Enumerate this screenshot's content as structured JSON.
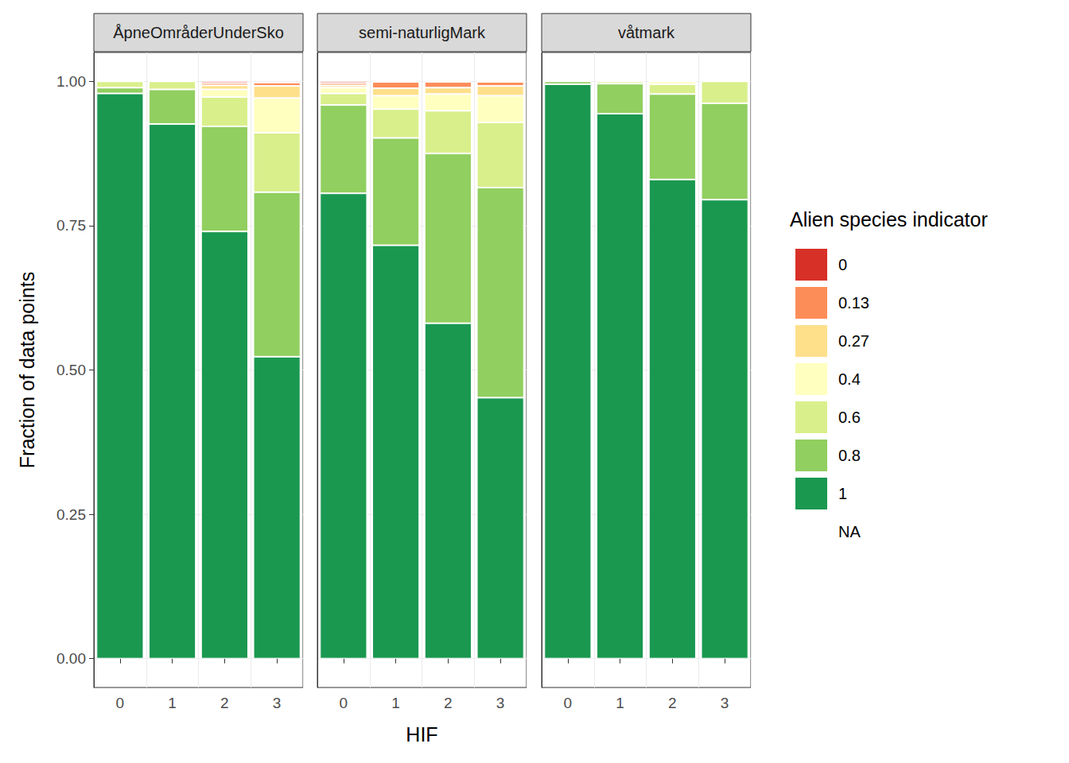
{
  "chart_data": {
    "type": "bar",
    "stacked": true,
    "grid": true,
    "x_label": "HIF",
    "y_label": "Fraction of data points",
    "legend_title": "Alien species indicator",
    "categories": [
      "0",
      "1",
      "2",
      "3"
    ],
    "ylim": [
      -0.05,
      1.05
    ],
    "yticks": [
      {
        "value": 0,
        "label": "0.00"
      },
      {
        "value": 0.25,
        "label": "0.25"
      },
      {
        "value": 0.5,
        "label": "0.50"
      },
      {
        "value": 0.75,
        "label": "0.75"
      },
      {
        "value": 1,
        "label": "1.00"
      }
    ],
    "facets": [
      {
        "title": "ÅpneOmråderUnderSko",
        "series": [
          {
            "name": "0",
            "color": "#d73027",
            "values": [
              0,
              0,
              0.003,
              0.002
            ]
          },
          {
            "name": "0.13",
            "color": "#fc8d59",
            "values": [
              0,
              0,
              0.004,
              0.006
            ]
          },
          {
            "name": "0.27",
            "color": "#fee08b",
            "values": [
              0,
              0,
              0.007,
              0.021
            ]
          },
          {
            "name": "0.4",
            "color": "#ffffbf",
            "values": [
              0,
              0,
              0.013,
              0.06
            ]
          },
          {
            "name": "0.6",
            "color": "#d9ef8b",
            "values": [
              0.011,
              0.014,
              0.051,
              0.103
            ]
          },
          {
            "name": "0.8",
            "color": "#91cf60",
            "values": [
              0.01,
              0.06,
              0.182,
              0.285
            ]
          },
          {
            "name": "1",
            "color": "#1a9850",
            "values": [
              0.979,
              0.926,
              0.74,
              0.523
            ]
          },
          {
            "name": "NA",
            "values": [
              null,
              null,
              null,
              null
            ]
          }
        ]
      },
      {
        "title": "semi-naturligMark",
        "series": [
          {
            "name": "0",
            "color": "#d73027",
            "values": [
              0.003,
              0.001,
              0.001,
              0.001
            ]
          },
          {
            "name": "0.13",
            "color": "#fc8d59",
            "values": [
              0.004,
              0.011,
              0.01,
              0.007
            ]
          },
          {
            "name": "0.27",
            "color": "#fee08b",
            "values": [
              0.004,
              0.013,
              0.011,
              0.017
            ]
          },
          {
            "name": "0.4",
            "color": "#ffffbf",
            "values": [
              0.01,
              0.023,
              0.029,
              0.046
            ]
          },
          {
            "name": "0.6",
            "color": "#d9ef8b",
            "values": [
              0.02,
              0.05,
              0.074,
              0.113
            ]
          },
          {
            "name": "0.8",
            "color": "#91cf60",
            "values": [
              0.153,
              0.186,
              0.294,
              0.364
            ]
          },
          {
            "name": "1",
            "color": "#1a9850",
            "values": [
              0.806,
              0.716,
              0.581,
              0.452
            ]
          },
          {
            "name": "NA",
            "values": [
              null,
              null,
              null,
              null
            ]
          }
        ]
      },
      {
        "title": "våtmark",
        "series": [
          {
            "name": "0",
            "color": "#d73027",
            "values": [
              0,
              0,
              0,
              0
            ]
          },
          {
            "name": "0.13",
            "color": "#fc8d59",
            "values": [
              0,
              0,
              0,
              0
            ]
          },
          {
            "name": "0.27",
            "color": "#fee08b",
            "values": [
              0,
              0,
              0,
              0
            ]
          },
          {
            "name": "0.4",
            "color": "#ffffbf",
            "values": [
              0,
              0,
              0.005,
              0
            ]
          },
          {
            "name": "0.6",
            "color": "#d9ef8b",
            "values": [
              0,
              0.004,
              0.017,
              0.038
            ]
          },
          {
            "name": "0.8",
            "color": "#91cf60",
            "values": [
              0.005,
              0.052,
              0.148,
              0.167
            ]
          },
          {
            "name": "1",
            "color": "#1a9850",
            "values": [
              0.995,
              0.944,
              0.83,
              0.795
            ]
          },
          {
            "name": "NA",
            "values": [
              null,
              null,
              null,
              null
            ]
          }
        ]
      }
    ]
  }
}
